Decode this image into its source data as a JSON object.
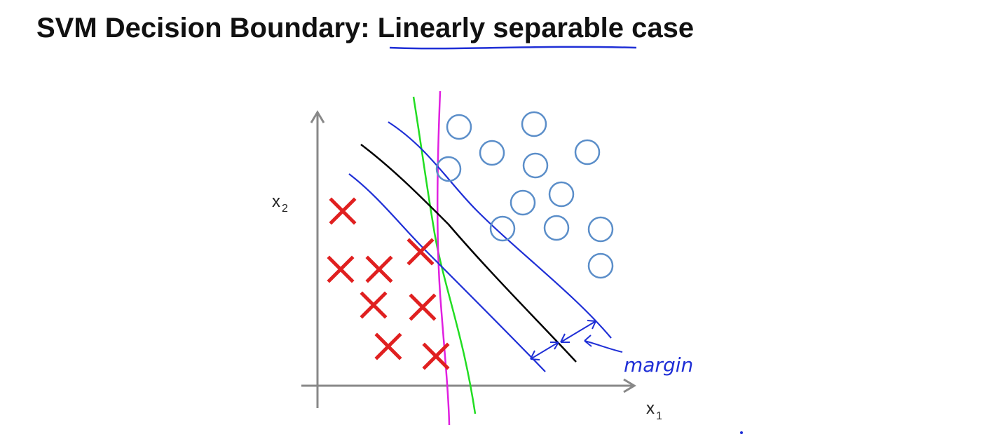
{
  "title": {
    "prefix": "SVM Decision Boundary: ",
    "underlined": "Linearly separable",
    "suffix": " case"
  },
  "axes": {
    "x_label": "x",
    "x_sub": "1",
    "y_label": "x",
    "y_sub": "2"
  },
  "annotation": {
    "text": "margin"
  },
  "colors": {
    "negative_class": "#e02020",
    "positive_class": "#5b8ec9",
    "svm_boundary": "#000000",
    "margin_lines": "#1f2fd6",
    "alt_boundary_green": "#22dd22",
    "alt_boundary_magenta": "#e020e0",
    "axes": "#888888"
  },
  "classes": {
    "negative_marker": "x-cross",
    "positive_marker": "circle"
  }
}
